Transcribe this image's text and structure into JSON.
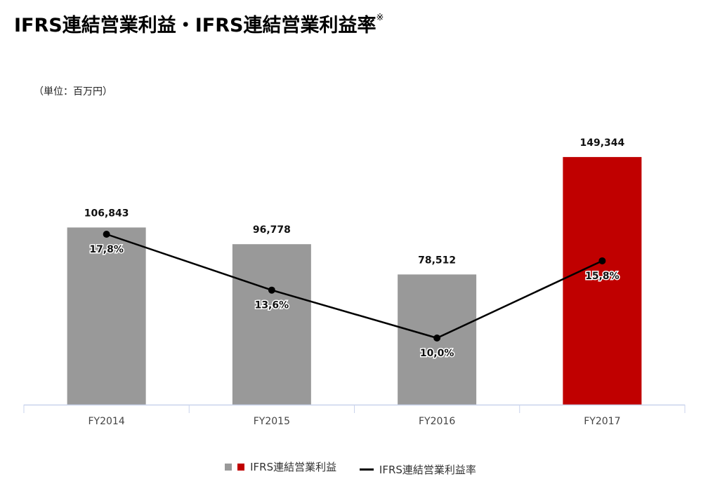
{
  "page": {
    "title": "IFRS連結営業利益・IFRS連結営業利益率",
    "title_mark": "※",
    "unit": "（単位：百万円）"
  },
  "legend": {
    "bar_label": "IFRS連結営業利益",
    "line_label": "IFRS連結営業利益率"
  },
  "colors": {
    "bar_default": "#999999",
    "bar_highlight": "#c00000",
    "line": "#000000",
    "axis": "#c9d3ec"
  },
  "chart_data": {
    "type": "bar",
    "categories": [
      "FY2014",
      "FY2015",
      "FY2016",
      "FY2017"
    ],
    "series": [
      {
        "name": "IFRS連結営業利益",
        "type": "bar",
        "values": [
          106843,
          96778,
          78512,
          149344
        ],
        "labels": [
          "106,843",
          "96,778",
          "78,512",
          "149,344"
        ],
        "highlight_index": 3
      },
      {
        "name": "IFRS連結営業利益率",
        "type": "line",
        "values": [
          17.8,
          13.6,
          10.0,
          15.8
        ],
        "labels": [
          "17,8%",
          "13,6%",
          "10,0%",
          "15,8%"
        ]
      }
    ],
    "legend_position": "bottom",
    "grid": false
  }
}
